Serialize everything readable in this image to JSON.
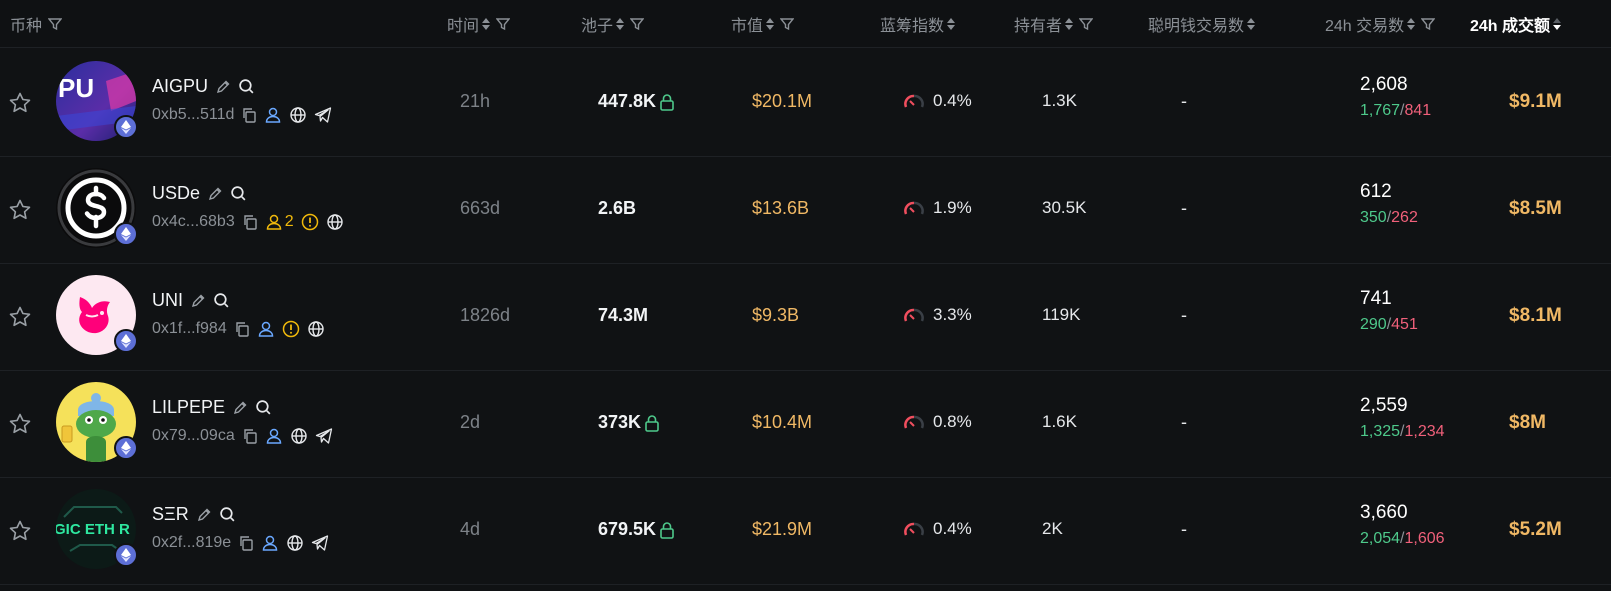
{
  "columns": {
    "coin": "币种",
    "age": "时间",
    "pool": "池子",
    "mcap": "市值",
    "bluechip": "蓝筹指数",
    "holders": "持有者",
    "smart_txns": "聪明钱交易数",
    "txns_24h": "24h 交易数",
    "volume_24h": "24h 成交额"
  },
  "rows": [
    {
      "name": "AIGPU",
      "address": "0xb5...511d",
      "age": "21h",
      "pool": "447.8K",
      "pool_locked": true,
      "mcap": "$20.1M",
      "bluechip": "0.4%",
      "holders": "1.3K",
      "smart_txns": "-",
      "txns": "2,608",
      "buys": "1,767",
      "sells": "841",
      "volume": "$9.1M",
      "holder_count_badge": "",
      "socials": [
        "user-icon",
        "globe-icon",
        "telegram-icon"
      ]
    },
    {
      "name": "USDe",
      "address": "0x4c...68b3",
      "age": "663d",
      "pool": "2.6B",
      "pool_locked": false,
      "mcap": "$13.6B",
      "bluechip": "1.9%",
      "holders": "30.5K",
      "smart_txns": "-",
      "txns": "612",
      "buys": "350",
      "sells": "262",
      "volume": "$8.5M",
      "holder_count_badge": "2",
      "socials": [
        "warning-icon",
        "globe-icon"
      ]
    },
    {
      "name": "UNI",
      "address": "0x1f...f984",
      "age": "1826d",
      "pool": "74.3M",
      "pool_locked": false,
      "mcap": "$9.3B",
      "bluechip": "3.3%",
      "holders": "119K",
      "smart_txns": "-",
      "txns": "741",
      "buys": "290",
      "sells": "451",
      "volume": "$8.1M",
      "holder_count_badge": "",
      "socials": [
        "warning-icon",
        "globe-icon"
      ]
    },
    {
      "name": "LILPEPE",
      "address": "0x79...09ca",
      "age": "2d",
      "pool": "373K",
      "pool_locked": true,
      "mcap": "$10.4M",
      "bluechip": "0.8%",
      "holders": "1.6K",
      "smart_txns": "-",
      "txns": "2,559",
      "buys": "1,325",
      "sells": "1,234",
      "volume": "$8M",
      "holder_count_badge": "",
      "socials": [
        "user-icon",
        "globe-icon",
        "telegram-icon"
      ]
    },
    {
      "name": "SΞR",
      "address": "0x2f...819e",
      "age": "4d",
      "pool": "679.5K",
      "pool_locked": true,
      "mcap": "$21.9M",
      "bluechip": "0.4%",
      "holders": "2K",
      "smart_txns": "-",
      "txns": "3,660",
      "buys": "2,054",
      "sells": "1,606",
      "volume": "$5.2M",
      "holder_count_badge": "",
      "socials": [
        "user-icon",
        "globe-icon",
        "telegram-icon"
      ]
    }
  ],
  "avatars": {
    "aigpu_text": "PU",
    "ser_text": "GIC ETH R"
  },
  "colors": {
    "accent_gold": "#f0b865",
    "buy_green": "#4ec98b",
    "sell_red": "#f0607a",
    "chain_badge": "#5d6fd6"
  }
}
